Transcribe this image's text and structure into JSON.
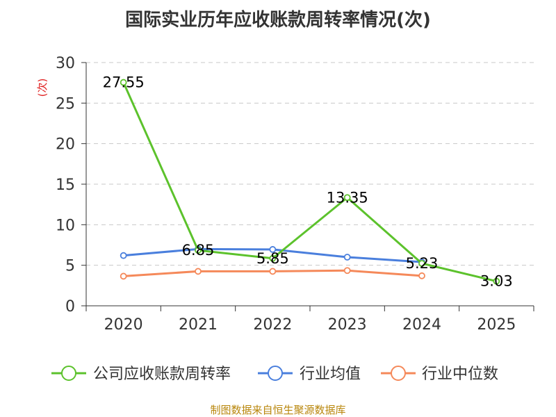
{
  "chart_data": {
    "type": "line",
    "title": "国际实业历年应收账款周转率情况(次)",
    "ylabel": "(次)",
    "xlabel": "",
    "categories": [
      "2020",
      "2021",
      "2022",
      "2023",
      "2024",
      "2025"
    ],
    "ylim": [
      0,
      30
    ],
    "yticks": [
      0,
      5,
      10,
      15,
      20,
      25,
      30
    ],
    "grid": true,
    "legend_position": "bottom",
    "series": [
      {
        "name": "公司应收账款周转率",
        "color": "#5cc22c",
        "values": [
          27.55,
          6.85,
          5.85,
          13.35,
          5.23,
          3.03
        ],
        "data_labels": [
          "27.55",
          "6.85",
          "5.85",
          "13.35",
          "5.23",
          "3.03"
        ]
      },
      {
        "name": "行业均值",
        "color": "#4a7fdd",
        "values": [
          6.2,
          7.0,
          6.95,
          6.0,
          5.4,
          null
        ]
      },
      {
        "name": "行业中位数",
        "color": "#f5895a",
        "values": [
          3.65,
          4.25,
          4.25,
          4.35,
          3.7,
          null
        ]
      }
    ],
    "source": "制图数据来自恒生聚源数据库"
  }
}
